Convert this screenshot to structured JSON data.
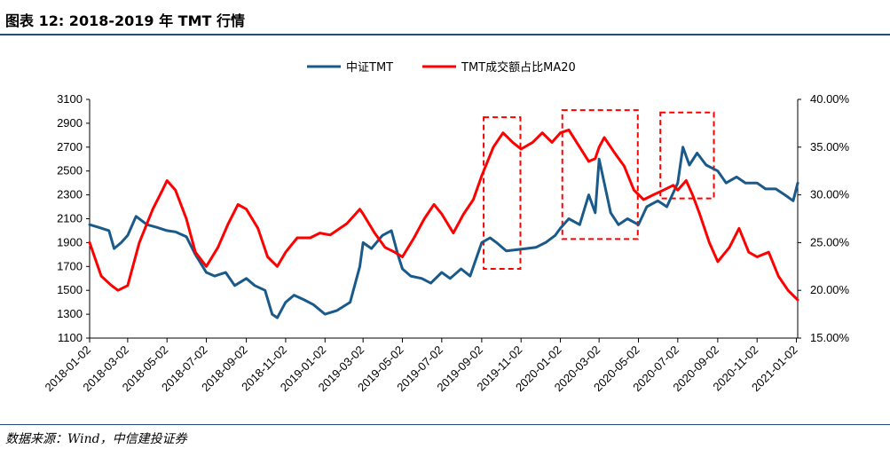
{
  "header": {
    "title": "图表 12: 2018-2019 年 TMT 行情"
  },
  "footer": {
    "source": "数据来源：Wind，中信建投证券"
  },
  "colors": {
    "accent": "#1f4e79",
    "series_blue": "#1a5a8a",
    "series_red": "#ff0000",
    "box": "#ff0000"
  },
  "chart_data": {
    "type": "line",
    "title": "",
    "xlabel": "",
    "ylabel": "",
    "legend_position": "top-center",
    "x_range": [
      "2018-01-02",
      "2021-01-04"
    ],
    "y_left": {
      "lim": [
        1100,
        3100
      ],
      "ticks": [
        1100,
        1300,
        1500,
        1700,
        1900,
        2100,
        2300,
        2500,
        2700,
        2900,
        3100
      ],
      "tick_labels": [
        "1100",
        "1300",
        "1500",
        "1700",
        "1900",
        "2100",
        "2300",
        "2500",
        "2700",
        "2900",
        "3100"
      ]
    },
    "y_right": {
      "lim": [
        15,
        40
      ],
      "ticks": [
        15,
        20,
        25,
        30,
        35,
        40
      ],
      "tick_labels": [
        "15.00%",
        "20.00%",
        "25.00%",
        "30.00%",
        "35.00%",
        "40.00%"
      ]
    },
    "x_ticks": [
      "2018-01-02",
      "2018-03-02",
      "2018-05-02",
      "2018-07-02",
      "2018-09-02",
      "2018-11-02",
      "2019-01-02",
      "2019-03-02",
      "2019-05-02",
      "2019-07-02",
      "2019-09-02",
      "2019-11-02",
      "2020-01-02",
      "2020-03-02",
      "2020-05-02",
      "2020-07-02",
      "2020-09-02",
      "2020-11-02",
      "2021-01-02"
    ],
    "series": [
      {
        "name": "中证TMT",
        "axis": "left",
        "color": "#1a5a8a",
        "points": [
          [
            "2018-01-02",
            2050
          ],
          [
            "2018-01-15",
            2030
          ],
          [
            "2018-02-01",
            2000
          ],
          [
            "2018-02-09",
            1850
          ],
          [
            "2018-02-20",
            1900
          ],
          [
            "2018-03-02",
            1960
          ],
          [
            "2018-03-15",
            2120
          ],
          [
            "2018-04-01",
            2050
          ],
          [
            "2018-04-15",
            2030
          ],
          [
            "2018-05-02",
            2000
          ],
          [
            "2018-05-15",
            1990
          ],
          [
            "2018-06-01",
            1950
          ],
          [
            "2018-06-15",
            1800
          ],
          [
            "2018-07-02",
            1650
          ],
          [
            "2018-07-15",
            1620
          ],
          [
            "2018-08-01",
            1650
          ],
          [
            "2018-08-15",
            1540
          ],
          [
            "2018-09-02",
            1600
          ],
          [
            "2018-09-15",
            1540
          ],
          [
            "2018-10-01",
            1500
          ],
          [
            "2018-10-12",
            1300
          ],
          [
            "2018-10-20",
            1270
          ],
          [
            "2018-11-02",
            1400
          ],
          [
            "2018-11-15",
            1460
          ],
          [
            "2018-12-01",
            1420
          ],
          [
            "2018-12-15",
            1380
          ],
          [
            "2019-01-02",
            1300
          ],
          [
            "2019-01-20",
            1330
          ],
          [
            "2019-02-10",
            1400
          ],
          [
            "2019-02-25",
            1700
          ],
          [
            "2019-03-02",
            1900
          ],
          [
            "2019-03-15",
            1850
          ],
          [
            "2019-04-01",
            1960
          ],
          [
            "2019-04-15",
            2000
          ],
          [
            "2019-04-25",
            1800
          ],
          [
            "2019-05-02",
            1680
          ],
          [
            "2019-05-15",
            1620
          ],
          [
            "2019-06-01",
            1600
          ],
          [
            "2019-06-15",
            1560
          ],
          [
            "2019-07-02",
            1650
          ],
          [
            "2019-07-15",
            1600
          ],
          [
            "2019-08-01",
            1680
          ],
          [
            "2019-08-15",
            1620
          ],
          [
            "2019-09-02",
            1900
          ],
          [
            "2019-09-15",
            1940
          ],
          [
            "2019-09-25",
            1900
          ],
          [
            "2019-10-10",
            1830
          ],
          [
            "2019-10-25",
            1840
          ],
          [
            "2019-11-10",
            1850
          ],
          [
            "2019-11-25",
            1860
          ],
          [
            "2019-12-10",
            1900
          ],
          [
            "2019-12-25",
            1960
          ],
          [
            "2020-01-02",
            2020
          ],
          [
            "2020-01-15",
            2100
          ],
          [
            "2020-02-01",
            2050
          ],
          [
            "2020-02-15",
            2300
          ],
          [
            "2020-02-25",
            2150
          ],
          [
            "2020-03-02",
            2600
          ],
          [
            "2020-03-10",
            2400
          ],
          [
            "2020-03-20",
            2150
          ],
          [
            "2020-04-01",
            2050
          ],
          [
            "2020-04-15",
            2100
          ],
          [
            "2020-05-02",
            2050
          ],
          [
            "2020-05-15",
            2200
          ],
          [
            "2020-06-01",
            2250
          ],
          [
            "2020-06-15",
            2200
          ],
          [
            "2020-07-02",
            2400
          ],
          [
            "2020-07-10",
            2700
          ],
          [
            "2020-07-20",
            2550
          ],
          [
            "2020-08-01",
            2650
          ],
          [
            "2020-08-15",
            2550
          ],
          [
            "2020-09-02",
            2500
          ],
          [
            "2020-09-15",
            2400
          ],
          [
            "2020-10-01",
            2450
          ],
          [
            "2020-10-15",
            2400
          ],
          [
            "2020-11-02",
            2400
          ],
          [
            "2020-11-15",
            2350
          ],
          [
            "2020-12-01",
            2350
          ],
          [
            "2020-12-15",
            2300
          ],
          [
            "2020-12-28",
            2250
          ],
          [
            "2021-01-04",
            2400
          ]
        ]
      },
      {
        "name": "TMT成交额占比MA20",
        "axis": "right",
        "color": "#ff0000",
        "points": [
          [
            "2018-01-02",
            25.0
          ],
          [
            "2018-01-20",
            21.5
          ],
          [
            "2018-02-05",
            20.5
          ],
          [
            "2018-02-15",
            20.0
          ],
          [
            "2018-03-02",
            20.5
          ],
          [
            "2018-03-20",
            25.0
          ],
          [
            "2018-04-10",
            28.5
          ],
          [
            "2018-04-25",
            30.5
          ],
          [
            "2018-05-02",
            31.5
          ],
          [
            "2018-05-15",
            30.5
          ],
          [
            "2018-06-01",
            27.5
          ],
          [
            "2018-06-15",
            24.0
          ],
          [
            "2018-07-02",
            22.5
          ],
          [
            "2018-07-20",
            24.5
          ],
          [
            "2018-08-05",
            27.0
          ],
          [
            "2018-08-20",
            29.0
          ],
          [
            "2018-09-02",
            28.5
          ],
          [
            "2018-09-20",
            26.5
          ],
          [
            "2018-10-05",
            23.5
          ],
          [
            "2018-10-20",
            22.5
          ],
          [
            "2018-11-02",
            24.0
          ],
          [
            "2018-11-20",
            25.5
          ],
          [
            "2018-12-10",
            25.5
          ],
          [
            "2018-12-25",
            26.0
          ],
          [
            "2019-01-10",
            25.8
          ],
          [
            "2019-02-05",
            27.0
          ],
          [
            "2019-02-25",
            28.5
          ],
          [
            "2019-03-02",
            28.0
          ],
          [
            "2019-03-20",
            26.0
          ],
          [
            "2019-04-05",
            24.5
          ],
          [
            "2019-04-20",
            24.0
          ],
          [
            "2019-05-02",
            23.5
          ],
          [
            "2019-05-20",
            25.5
          ],
          [
            "2019-06-05",
            27.5
          ],
          [
            "2019-06-20",
            29.0
          ],
          [
            "2019-07-02",
            28.0
          ],
          [
            "2019-07-20",
            26.0
          ],
          [
            "2019-08-05",
            28.0
          ],
          [
            "2019-08-20",
            29.5
          ],
          [
            "2019-09-02",
            32.0
          ],
          [
            "2019-09-20",
            35.0
          ],
          [
            "2019-10-05",
            36.5
          ],
          [
            "2019-10-20",
            35.5
          ],
          [
            "2019-11-02",
            34.8
          ],
          [
            "2019-11-20",
            35.5
          ],
          [
            "2019-12-05",
            36.5
          ],
          [
            "2019-12-20",
            35.5
          ],
          [
            "2020-01-02",
            36.5
          ],
          [
            "2020-01-15",
            36.8
          ],
          [
            "2020-02-01",
            35.0
          ],
          [
            "2020-02-15",
            33.5
          ],
          [
            "2020-02-25",
            33.8
          ],
          [
            "2020-03-02",
            35.0
          ],
          [
            "2020-03-10",
            36.0
          ],
          [
            "2020-03-25",
            34.5
          ],
          [
            "2020-04-10",
            33.0
          ],
          [
            "2020-04-25",
            30.5
          ],
          [
            "2020-05-10",
            29.5
          ],
          [
            "2020-05-25",
            30.0
          ],
          [
            "2020-06-10",
            30.5
          ],
          [
            "2020-06-25",
            31.0
          ],
          [
            "2020-07-02",
            30.5
          ],
          [
            "2020-07-15",
            31.5
          ],
          [
            "2020-07-25",
            30.0
          ],
          [
            "2020-08-05",
            28.0
          ],
          [
            "2020-08-20",
            25.0
          ],
          [
            "2020-09-02",
            23.0
          ],
          [
            "2020-09-20",
            24.5
          ],
          [
            "2020-10-05",
            26.5
          ],
          [
            "2020-10-20",
            24.0
          ],
          [
            "2020-11-02",
            23.5
          ],
          [
            "2020-11-20",
            24.0
          ],
          [
            "2020-12-05",
            21.5
          ],
          [
            "2020-12-20",
            20.0
          ],
          [
            "2021-01-04",
            19.0
          ]
        ]
      }
    ],
    "annotations": [
      {
        "type": "dashed-box",
        "x_start": "2019-09-05",
        "x_end": "2019-11-01",
        "y_top": 2950,
        "y_bottom": 1680
      },
      {
        "type": "dashed-box",
        "x_start": "2020-01-05",
        "x_end": "2020-05-01",
        "y_top": 3010,
        "y_bottom": 1930
      },
      {
        "type": "dashed-box",
        "x_start": "2020-06-05",
        "x_end": "2020-08-27",
        "y_top": 2990,
        "y_bottom": 2270
      }
    ]
  }
}
